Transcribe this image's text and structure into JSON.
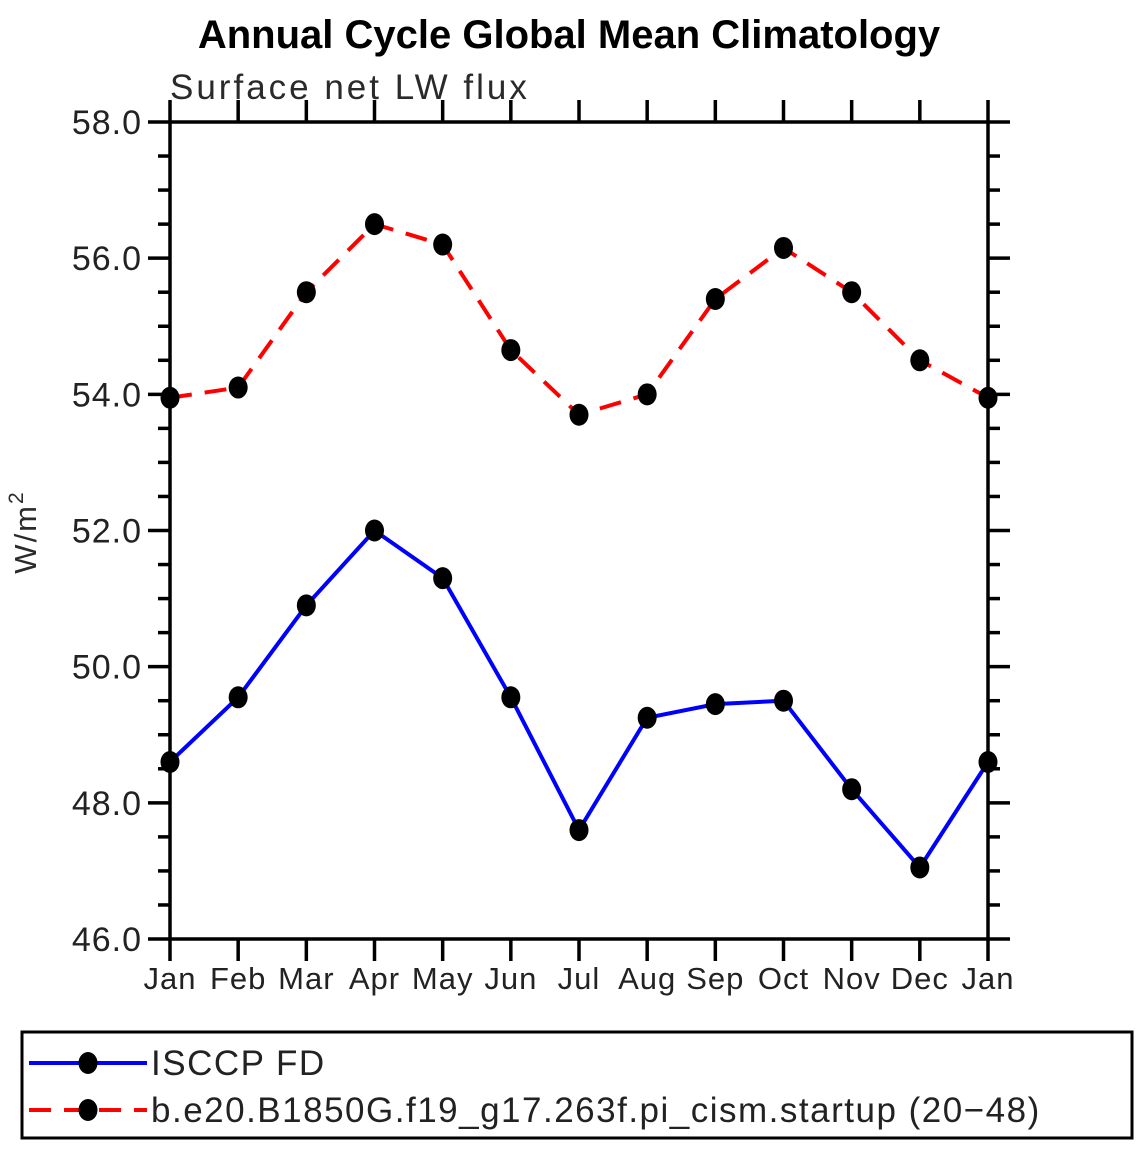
{
  "title": "Annual Cycle Global Mean Climatology",
  "subtitle": "Surface net LW flux",
  "y_axis": {
    "label_base": "W/m",
    "label_exponent": "2",
    "tick_labels": [
      "46.0",
      "48.0",
      "50.0",
      "52.0",
      "54.0",
      "56.0",
      "58.0"
    ],
    "major_ticks": [
      46.0,
      48.0,
      50.0,
      52.0,
      54.0,
      56.0,
      58.0
    ],
    "minor_step": 0.5,
    "ylim": [
      46.0,
      58.0
    ]
  },
  "x_axis": {
    "tick_labels": [
      "Jan",
      "Feb",
      "Mar",
      "Apr",
      "May",
      "Jun",
      "Jul",
      "Aug",
      "Sep",
      "Oct",
      "Nov",
      "Dec",
      "Jan"
    ]
  },
  "colors": {
    "obs_line": "#0000ff",
    "model_line": "#ff0000",
    "marker": "#000000",
    "axis": "#000000"
  },
  "legend": {
    "items": [
      {
        "label": "ISCCP FD",
        "color": "#0000ff",
        "style": "solid"
      },
      {
        "label": "b.e20.B1850G.f19_g17.263f.pi_cism.startup (20−48)",
        "color": "#ff0000",
        "style": "dashed"
      }
    ]
  },
  "chart_data": {
    "type": "line",
    "title": "Annual Cycle Global Mean Climatology",
    "subtitle": "Surface net LW flux",
    "ylabel": "W/m^2",
    "categories": [
      "Jan",
      "Feb",
      "Mar",
      "Apr",
      "May",
      "Jun",
      "Jul",
      "Aug",
      "Sep",
      "Oct",
      "Nov",
      "Dec",
      "Jan"
    ],
    "ylim": [
      46.0,
      58.0
    ],
    "ytick_major": 2.0,
    "ytick_minor": 0.5,
    "grid": false,
    "legend_position": "bottom",
    "series": [
      {
        "name": "ISCCP FD",
        "color": "#0000ff",
        "line_style": "solid",
        "marker": "filled-circle",
        "values": [
          48.6,
          49.55,
          50.9,
          52.0,
          51.3,
          49.55,
          47.6,
          49.25,
          49.45,
          49.5,
          48.2,
          47.05,
          48.6
        ]
      },
      {
        "name": "b.e20.B1850G.f19_g17.263f.pi_cism.startup (20−48)",
        "color": "#ff0000",
        "line_style": "dashed",
        "marker": "filled-circle",
        "values": [
          53.95,
          54.1,
          55.5,
          56.5,
          56.2,
          54.65,
          53.7,
          54.0,
          55.4,
          56.15,
          55.5,
          54.5,
          53.95
        ]
      }
    ]
  }
}
